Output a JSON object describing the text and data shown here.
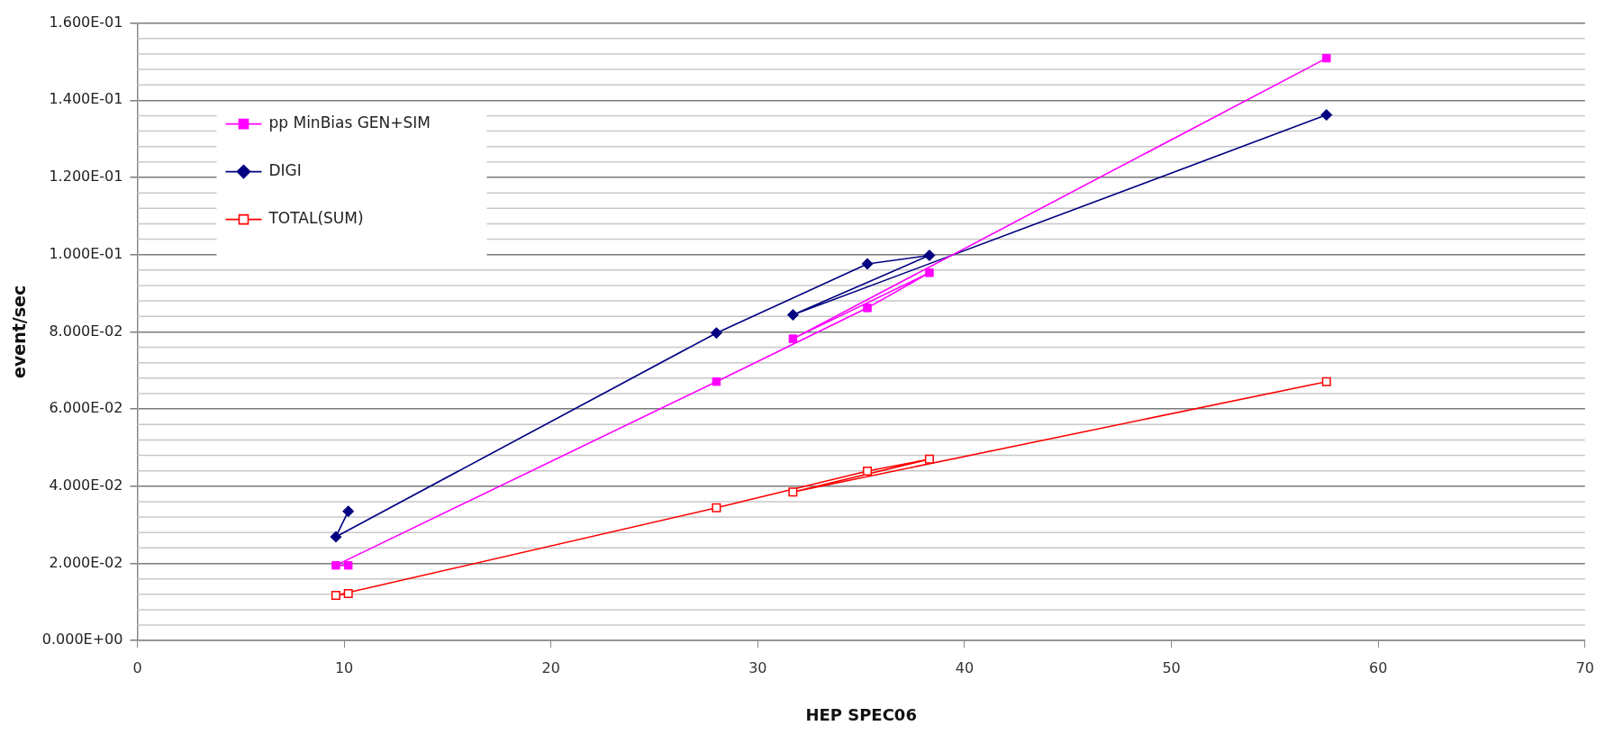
{
  "chart_data": {
    "type": "line",
    "xlabel": "HEP SPEC06",
    "ylabel": "event/sec",
    "xlim": [
      0,
      70
    ],
    "xticks": [
      0,
      10,
      20,
      30,
      40,
      50,
      60,
      70
    ],
    "ylim": [
      0,
      0.16
    ],
    "yticks": [
      {
        "value": 0,
        "label": "0.000E+00"
      },
      {
        "value": 0.02,
        "label": "2.000E-02"
      },
      {
        "value": 0.04,
        "label": "4.000E-02"
      },
      {
        "value": 0.06,
        "label": "6.000E-02"
      },
      {
        "value": 0.08,
        "label": "8.000E-02"
      },
      {
        "value": 0.1,
        "label": "1.000E-01"
      },
      {
        "value": 0.12,
        "label": "1.200E-01"
      },
      {
        "value": 0.14,
        "label": "1.400E-01"
      },
      {
        "value": 0.16,
        "label": "1.600E-01"
      }
    ],
    "grid": "y",
    "legend": "top left",
    "series": [
      {
        "name": "pp MinBias GEN+SIM",
        "color": "#ff00ff",
        "marker": "square",
        "x": [
          10.2,
          9.6,
          28.0,
          35.3,
          38.3,
          31.7,
          57.5
        ],
        "values": [
          0.0195,
          0.0195,
          0.0671,
          0.0862,
          0.0953,
          0.0782,
          0.1509
        ]
      },
      {
        "name": "DIGI",
        "color": "#000080",
        "marker": "diamond",
        "x": [
          10.2,
          9.6,
          28.0,
          35.3,
          38.3,
          31.7,
          57.5
        ],
        "values": [
          0.0335,
          0.0269,
          0.0797,
          0.0976,
          0.0998,
          0.0844,
          0.1362
        ]
      },
      {
        "name": "TOTAL(SUM)",
        "color": "#ff0000",
        "marker": "square",
        "x": [
          10.2,
          9.6,
          28.0,
          35.3,
          38.3,
          31.7,
          57.5
        ],
        "values": [
          0.0122,
          0.0117,
          0.0344,
          0.0439,
          0.047,
          0.0385,
          0.0671
        ]
      }
    ]
  }
}
